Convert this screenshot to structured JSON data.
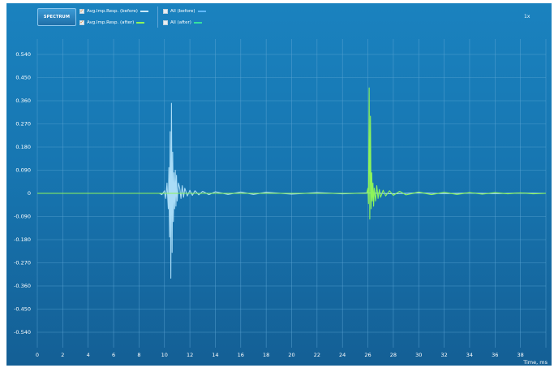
{
  "toolbar": {
    "spectrum_label": "SPECTRUM",
    "zoom_label": "1x"
  },
  "legend": [
    {
      "label": "Avg.Imp.Resp. (before)",
      "checked": true,
      "color": "#c8e8fb"
    },
    {
      "label": "Avg.Imp.Resp. (after)",
      "checked": true,
      "color": "#8df55a"
    },
    {
      "label": "All (before)",
      "checked": false,
      "color": "#5fb8ff"
    },
    {
      "label": "All (after)",
      "checked": false,
      "color": "#35e0a0"
    }
  ],
  "colors": {
    "background": "#1776b1",
    "grid": "#5da5d4",
    "before": "#a9dcf7",
    "after": "#8df55a"
  },
  "chart_data": {
    "type": "line",
    "xlabel": "Time, ms",
    "ylabel": "",
    "xlim": [
      0,
      40
    ],
    "ylim": [
      -0.6,
      0.6
    ],
    "grid": true,
    "legend_position": "top",
    "x_ticks": [
      "0",
      "2",
      "4",
      "6",
      "8",
      "10",
      "12",
      "14",
      "16",
      "18",
      "20",
      "22",
      "24",
      "26",
      "28",
      "30",
      "32",
      "34",
      "36",
      "38"
    ],
    "y_ticks": [
      "0.540",
      "0.450",
      "0.360",
      "0.270",
      "0.180",
      "0.090",
      "0",
      "-0.090",
      "-0.180",
      "-0.270",
      "-0.360",
      "-0.450",
      "-0.540"
    ],
    "series": [
      {
        "name": "Avg.Imp.Resp. (before)",
        "color": "#a9dcf7",
        "x": [
          0,
          9.6,
          9.8,
          10.0,
          10.1,
          10.2,
          10.3,
          10.35,
          10.4,
          10.45,
          10.5,
          10.55,
          10.6,
          10.65,
          10.7,
          10.75,
          10.8,
          10.85,
          10.9,
          10.95,
          11.0,
          11.1,
          11.2,
          11.3,
          11.4,
          11.5,
          11.6,
          11.8,
          12.0,
          12.2,
          12.4,
          12.7,
          13.0,
          13.5,
          14.0,
          15.0,
          16.0,
          17.0,
          18.0,
          20.0,
          22.0,
          24.0,
          26.0,
          28.0,
          30.0,
          32.0,
          34.0,
          36.0,
          38.0,
          40.0
        ],
        "y": [
          0,
          0,
          -0.005,
          0.01,
          -0.02,
          0.04,
          -0.06,
          0.1,
          -0.17,
          0.24,
          -0.33,
          0.35,
          -0.23,
          0.16,
          -0.11,
          0.08,
          -0.06,
          0.09,
          -0.05,
          0.07,
          -0.03,
          0.04,
          0.02,
          -0.02,
          0.03,
          -0.015,
          0.02,
          -0.01,
          0.012,
          -0.008,
          0.01,
          -0.006,
          0.008,
          -0.005,
          0.006,
          -0.004,
          0.005,
          -0.004,
          0.004,
          -0.003,
          0.003,
          -0.002,
          0.002,
          -0.002,
          0.002,
          -0.001,
          0.001,
          -0.001,
          0.001,
          0
        ]
      },
      {
        "name": "Avg.Imp.Resp. (after)",
        "color": "#8df55a",
        "x": [
          0,
          25.9,
          26.0,
          26.05,
          26.1,
          26.15,
          26.2,
          26.25,
          26.3,
          26.35,
          26.4,
          26.45,
          26.5,
          26.6,
          26.7,
          26.8,
          26.9,
          27.0,
          27.2,
          27.4,
          27.7,
          28.0,
          28.5,
          29.0,
          30.0,
          31.0,
          32.0,
          33.0,
          34.0,
          35.0,
          36.0,
          37.0,
          38.0,
          39.0,
          40.0
        ],
        "y": [
          0,
          0,
          0.02,
          -0.04,
          0.41,
          -0.1,
          0.3,
          -0.06,
          0.08,
          -0.03,
          0.04,
          -0.05,
          0.02,
          -0.03,
          0.03,
          -0.02,
          0.015,
          -0.015,
          0.012,
          -0.01,
          0.01,
          -0.008,
          0.008,
          -0.006,
          0.005,
          -0.005,
          0.004,
          -0.004,
          0.003,
          -0.003,
          0.003,
          -0.002,
          0.002,
          -0.002,
          0
        ]
      }
    ]
  }
}
